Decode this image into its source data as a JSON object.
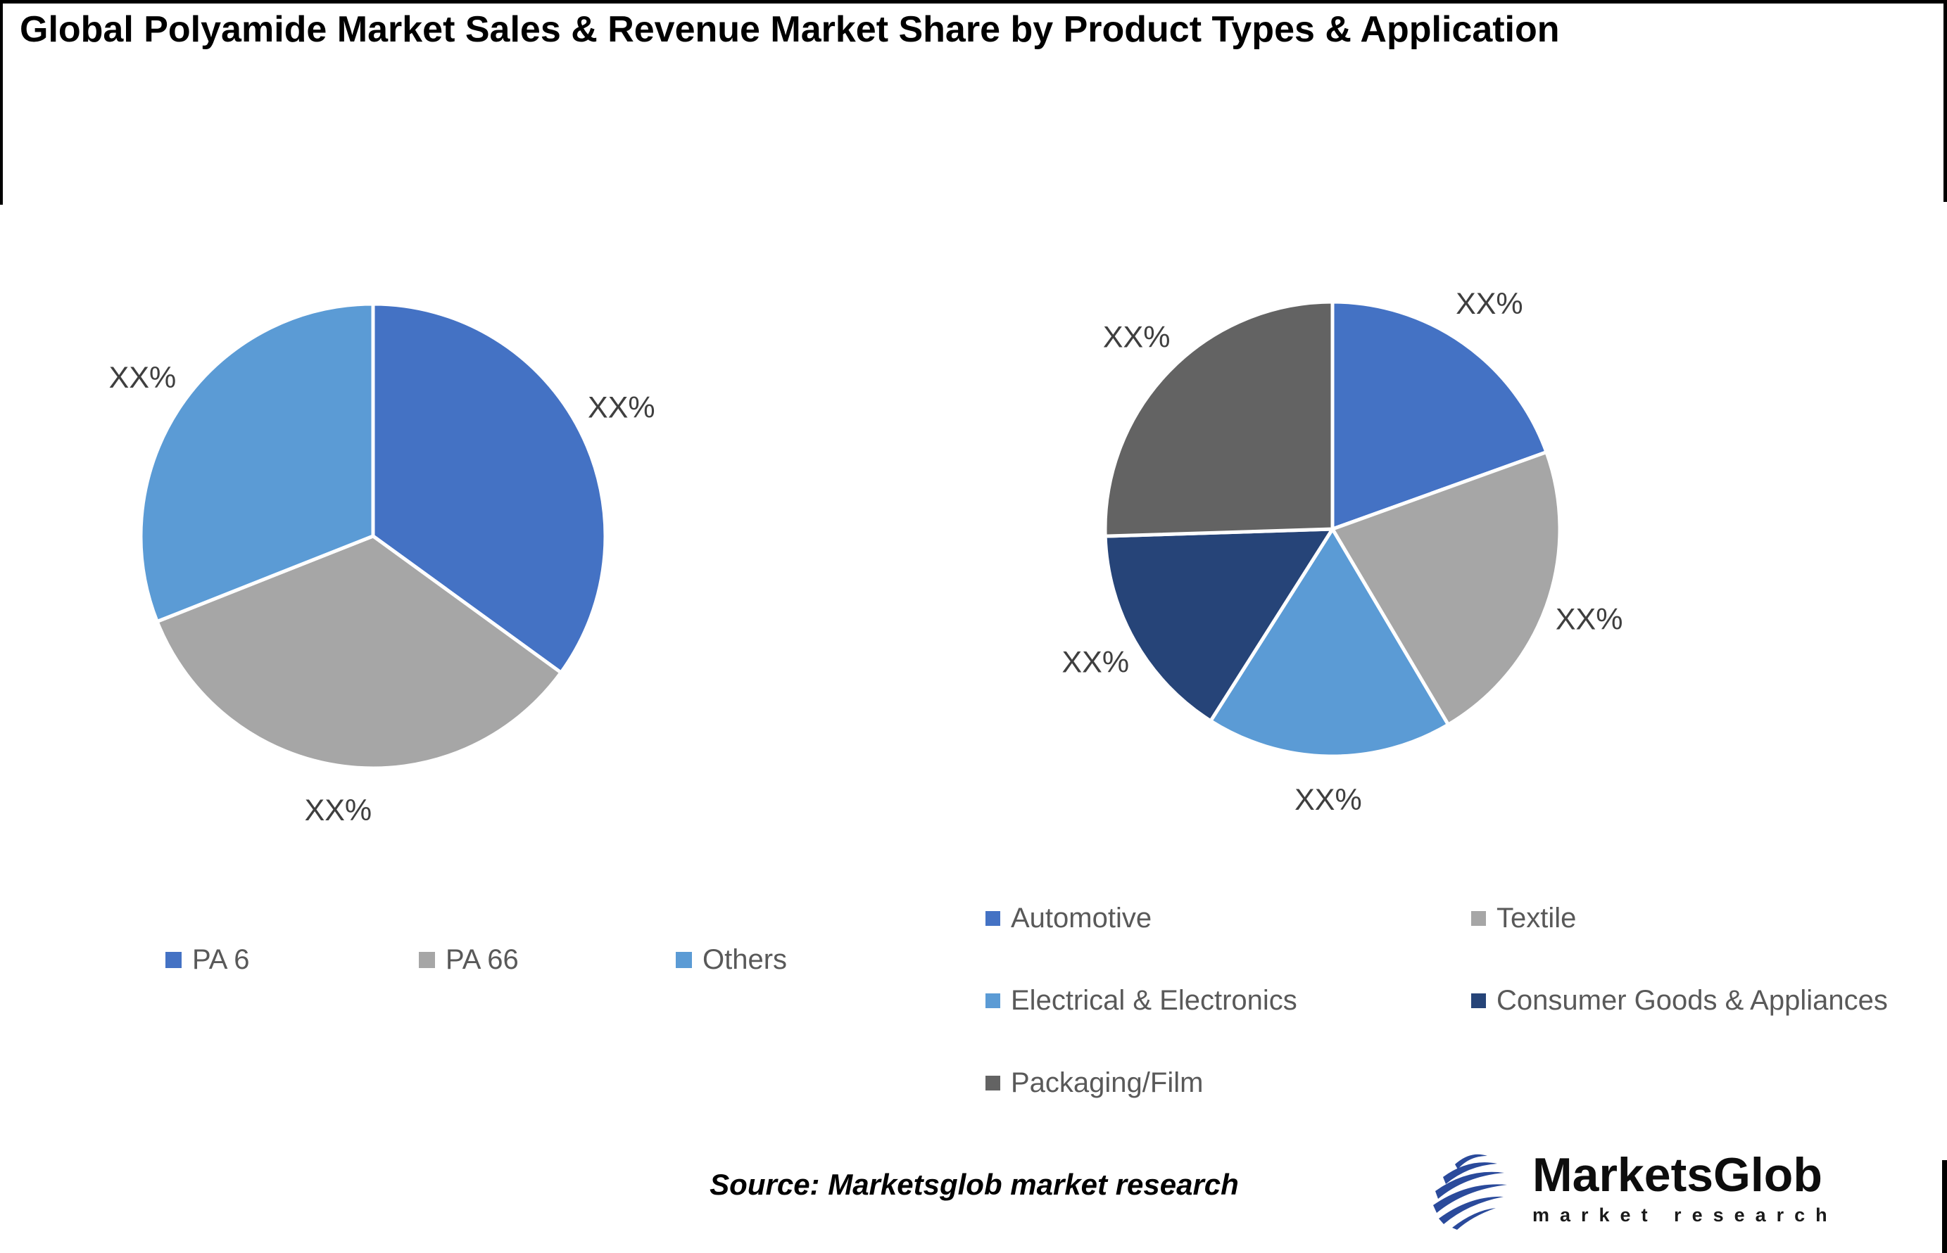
{
  "title": "Global Polyamide Market Sales & Revenue Market Share by Product Types & Application",
  "source_note": "Source: Marketsglob market research",
  "logo": {
    "brand": "MarketsGlob",
    "tagline": "market research",
    "globe_color": "#2A4A9B"
  },
  "colors": {
    "accent_blue": "#4472C4",
    "gray": "#A6A6A6",
    "light_blue": "#5B9BD5",
    "navy": "#264478",
    "dark_gray": "#636363",
    "slice_label_text": "#3F3F3F",
    "legend_text": "#595959",
    "border_black": "#000000"
  },
  "chart_data": [
    {
      "type": "pie",
      "title": "Sales & Revenue Market Share by Product Types",
      "categories": [
        "PA 6",
        "PA 66",
        "Others"
      ],
      "values": [
        35,
        34,
        31
      ],
      "labels": [
        "XX%",
        "XX%",
        "XX%"
      ],
      "colors": [
        "#4472C4",
        "#A6A6A6",
        "#5B9BD5"
      ],
      "start_angle_deg": 0,
      "direction": "clockwise",
      "legend_position": "bottom",
      "grid": false
    },
    {
      "type": "pie",
      "title": "Sales & Revenue Market Share by Application",
      "categories": [
        "Automotive",
        "Textile",
        "Electrical & Electronics",
        "Consumer Goods & Appliances",
        "Packaging/Film"
      ],
      "values": [
        19.5,
        22,
        17.5,
        15.5,
        25.5
      ],
      "labels": [
        "XX%",
        "XX%",
        "XX%",
        "XX%",
        "XX%"
      ],
      "colors": [
        "#4472C4",
        "#A6A6A6",
        "#5B9BD5",
        "#264478",
        "#636363"
      ],
      "start_angle_deg": 0,
      "direction": "clockwise",
      "legend_position": "bottom",
      "grid": false
    }
  ]
}
